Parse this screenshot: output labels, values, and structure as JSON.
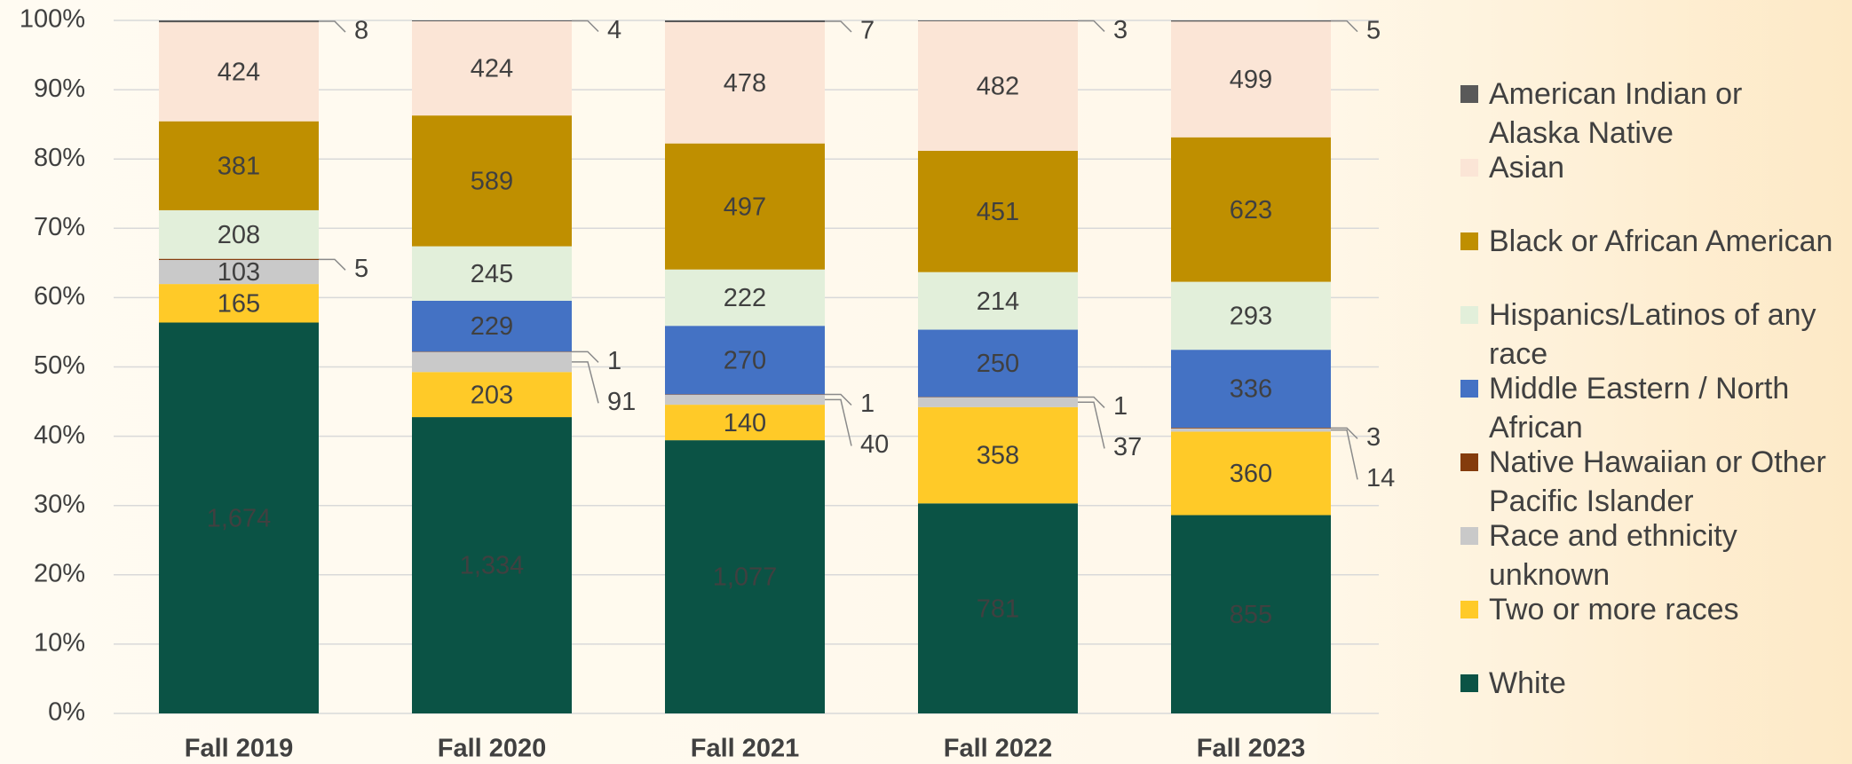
{
  "chart_data": {
    "type": "stacked_bar_percent",
    "categories": [
      "Fall 2019",
      "Fall 2020",
      "Fall 2021",
      "Fall 2022",
      "Fall 2023"
    ],
    "series": [
      {
        "name": "American Indian or Alaska Native",
        "color": "#595959",
        "values": [
          8,
          4,
          7,
          3,
          5
        ]
      },
      {
        "name": "Asian",
        "color": "#fbe5d6",
        "values": [
          424,
          424,
          478,
          482,
          499
        ]
      },
      {
        "name": "Black or African American",
        "color": "#bf8f00",
        "values": [
          381,
          589,
          497,
          451,
          623
        ]
      },
      {
        "name": "Hispanics/Latinos of any race",
        "color": "#e2efda",
        "values": [
          208,
          245,
          222,
          214,
          293
        ]
      },
      {
        "name": "Middle Eastern / North African",
        "color": "#4472c4",
        "values": [
          null,
          229,
          270,
          250,
          336
        ]
      },
      {
        "name": "Native Hawaiian or Other Pacific Islander",
        "color": "#843c0c",
        "values": [
          5,
          1,
          1,
          1,
          3
        ]
      },
      {
        "name": "Race and ethnicity unknown",
        "color": "#c9c9c9",
        "values": [
          103,
          91,
          40,
          37,
          14
        ]
      },
      {
        "name": "Two or more races",
        "color": "#ffca28",
        "values": [
          165,
          203,
          140,
          358,
          360
        ]
      },
      {
        "name": "White",
        "color": "#0b5345",
        "values": [
          1674,
          1334,
          1077,
          781,
          855
        ],
        "value_labels": [
          "1,674",
          "1,334",
          "1,077",
          "781",
          "855"
        ]
      }
    ],
    "ylim": [
      0,
      100
    ],
    "yticks": [
      {
        "value": 0,
        "label": "0%"
      },
      {
        "value": 10,
        "label": "10%"
      },
      {
        "value": 20,
        "label": "20%"
      },
      {
        "value": 30,
        "label": "30%"
      },
      {
        "value": 40,
        "label": "40%"
      },
      {
        "value": 50,
        "label": "50%"
      },
      {
        "value": 60,
        "label": "60%"
      },
      {
        "value": 70,
        "label": "70%"
      },
      {
        "value": 80,
        "label": "80%"
      },
      {
        "value": 90,
        "label": "90%"
      },
      {
        "value": 100,
        "label": "100%"
      }
    ],
    "grid": true,
    "legend": "right"
  }
}
